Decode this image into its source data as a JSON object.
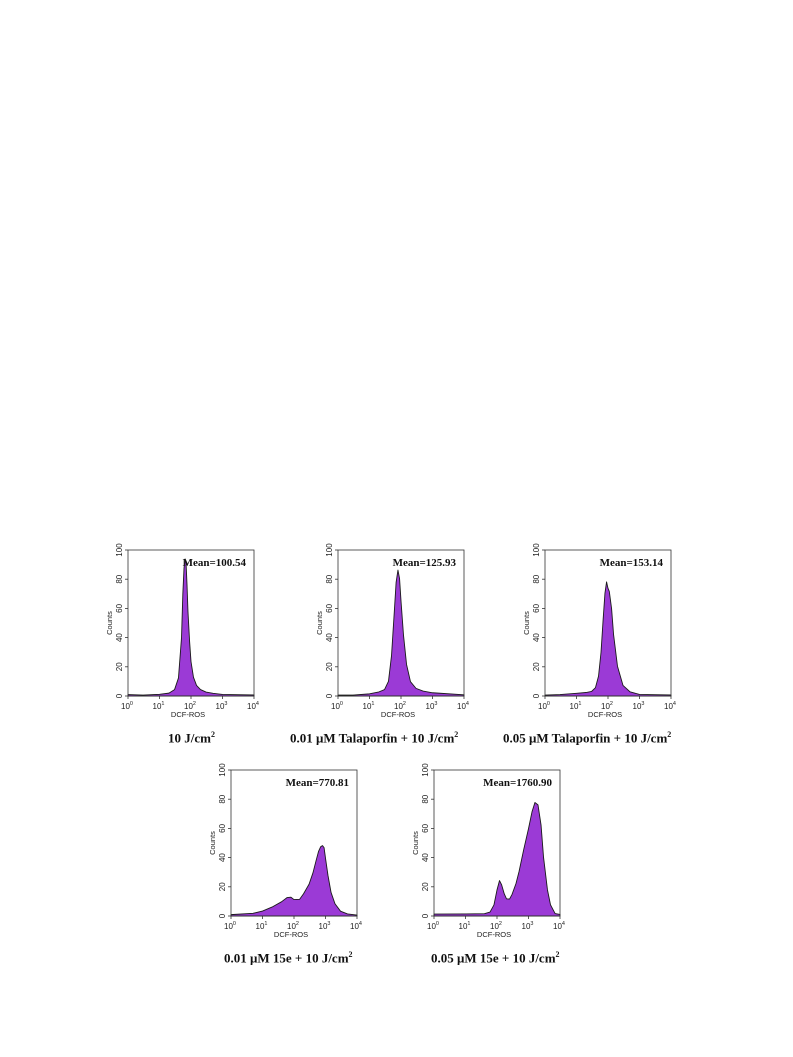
{
  "chart_data": [
    {
      "type": "area",
      "title": "10 J/cm2",
      "caption_main": "10 J/cm",
      "caption_sup": "2",
      "annotation": "Mean=100.54",
      "xlabel": "DCF-ROS",
      "ylabel": "Counts",
      "x_scale": "log",
      "xlim": [
        1,
        10000
      ],
      "ylim": [
        0,
        100
      ],
      "xticks": [
        "10^0",
        "10^1",
        "10^2",
        "10^3",
        "10^4"
      ],
      "yticks": [
        0,
        20,
        40,
        60,
        80,
        100
      ],
      "fill_color": "#9b3ad6",
      "series": [
        {
          "x": [
            1,
            3,
            10,
            20,
            30,
            40,
            50,
            55,
            60,
            65,
            70,
            75,
            80,
            90,
            100,
            120,
            150,
            200,
            300,
            500,
            1000,
            10000
          ],
          "y": [
            1,
            1,
            1.5,
            2,
            4,
            12,
            40,
            70,
            88,
            94,
            90,
            75,
            58,
            38,
            24,
            13,
            7,
            4,
            2.5,
            2,
            1.5,
            1
          ]
        }
      ]
    },
    {
      "type": "area",
      "title": "0.01 μM Talaporfin + 10 J/cm2",
      "caption_main": "0.01 μM Talaporfin + 10 J/cm",
      "caption_sup": "2",
      "annotation": "Mean=125.93",
      "xlabel": "DCF-ROS",
      "ylabel": "Counts",
      "x_scale": "log",
      "xlim": [
        1,
        10000
      ],
      "ylim": [
        0,
        100
      ],
      "xticks": [
        "10^0",
        "10^1",
        "10^2",
        "10^3",
        "10^4"
      ],
      "yticks": [
        0,
        20,
        40,
        60,
        80,
        100
      ],
      "fill_color": "#9b3ad6",
      "series": [
        {
          "x": [
            1,
            3,
            10,
            20,
            30,
            40,
            50,
            60,
            70,
            80,
            90,
            100,
            120,
            150,
            200,
            300,
            500,
            1000,
            10000
          ],
          "y": [
            1,
            1,
            1.5,
            2.5,
            4,
            10,
            28,
            55,
            78,
            86,
            80,
            65,
            42,
            22,
            10,
            5,
            3,
            2,
            1
          ]
        }
      ]
    },
    {
      "type": "area",
      "title": "0.05 μM Talaporfin + 10 J/cm2",
      "caption_main": "0.05 μM Talaporfin + 10 J/cm",
      "caption_sup": "2",
      "annotation": "Mean=153.14",
      "xlabel": "DCF-ROS",
      "ylabel": "Counts",
      "x_scale": "log",
      "xlim": [
        1,
        10000
      ],
      "ylim": [
        0,
        100
      ],
      "xticks": [
        "10^0",
        "10^1",
        "10^2",
        "10^3",
        "10^4"
      ],
      "yticks": [
        0,
        20,
        40,
        60,
        80,
        100
      ],
      "fill_color": "#9b3ad6",
      "series": [
        {
          "x": [
            1,
            3,
            10,
            20,
            30,
            40,
            50,
            60,
            70,
            80,
            90,
            100,
            110,
            130,
            150,
            200,
            300,
            500,
            1000,
            10000
          ],
          "y": [
            1,
            1,
            1.5,
            2,
            3,
            6,
            14,
            30,
            52,
            70,
            78,
            74,
            72,
            60,
            42,
            20,
            7,
            3,
            1.5,
            1
          ]
        }
      ]
    },
    {
      "type": "area",
      "title": "0.01 μM 15e + 10 J/cm2",
      "caption_main": "0.01 μM 15e + 10 J/cm",
      "caption_sup": "2",
      "annotation": "Mean=770.81",
      "xlabel": "DCF-ROS",
      "ylabel": "Counts",
      "x_scale": "log",
      "xlim": [
        1,
        10000
      ],
      "ylim": [
        0,
        100
      ],
      "xticks": [
        "10^0",
        "10^1",
        "10^2",
        "10^3",
        "10^4"
      ],
      "yticks": [
        0,
        20,
        40,
        60,
        80,
        100
      ],
      "fill_color": "#9b3ad6",
      "series": [
        {
          "x": [
            1,
            5,
            10,
            20,
            40,
            60,
            80,
            100,
            150,
            200,
            300,
            400,
            500,
            600,
            700,
            800,
            900,
            1000,
            1200,
            1500,
            2000,
            3000,
            5000,
            10000
          ],
          "y": [
            1,
            1.5,
            3,
            6,
            10,
            13,
            13,
            11,
            11,
            15,
            22,
            30,
            38,
            44,
            47,
            48,
            47,
            40,
            28,
            16,
            8,
            3,
            1.5,
            1
          ]
        }
      ]
    },
    {
      "type": "area",
      "title": "0.05 μM 15e + 10 J/cm2",
      "caption_main": "0.05 μM 15e + 10 J/cm",
      "caption_sup": "2",
      "annotation": "Mean=1760.90",
      "xlabel": "DCF-ROS",
      "ylabel": "Counts",
      "x_scale": "log",
      "xlim": [
        1,
        10000
      ],
      "ylim": [
        0,
        100
      ],
      "xticks": [
        "10^0",
        "10^1",
        "10^2",
        "10^3",
        "10^4"
      ],
      "yticks": [
        0,
        20,
        40,
        60,
        80,
        100
      ],
      "fill_color": "#9b3ad6",
      "series": [
        {
          "x": [
            1,
            10,
            40,
            60,
            80,
            100,
            120,
            140,
            170,
            200,
            250,
            300,
            400,
            500,
            700,
            1000,
            1300,
            1600,
            2000,
            2500,
            3000,
            4000,
            5000,
            7000,
            10000
          ],
          "y": [
            1,
            1,
            1.5,
            3,
            8,
            18,
            24,
            21,
            15,
            12,
            12,
            15,
            22,
            30,
            45,
            60,
            72,
            78,
            76,
            62,
            40,
            18,
            8,
            2,
            1
          ]
        }
      ]
    }
  ]
}
